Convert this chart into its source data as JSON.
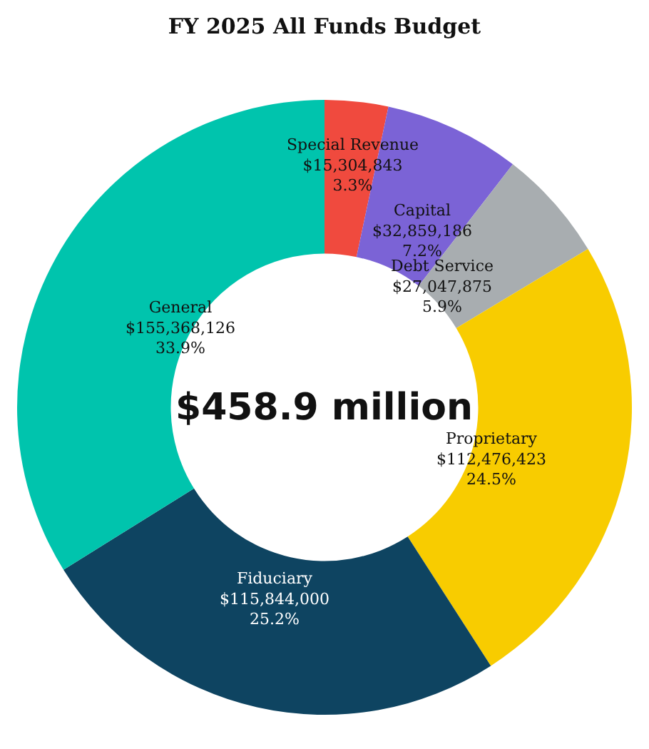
{
  "chart_data": {
    "type": "donut",
    "title": "FY 2025 All Funds Budget",
    "categories": [
      "Special Revenue",
      "Capital",
      "Debt Service",
      "Proprietary",
      "Fiduciary",
      "General"
    ],
    "values": [
      15304843,
      32859186,
      27047875,
      112476423,
      115844000,
      155368126
    ],
    "value_labels": [
      "$15,304,843\n3.3%",
      "$32,859,186\n7.2%",
      "$27,047,875\n5.9%",
      "$112,476,423\n24.5%",
      "$115,844,000\n25.2%",
      "$155,368,126\n33.9%"
    ],
    "colors": [
      "#f04a3e",
      "#7b63d6",
      "#a8adb0",
      "#f8cc00",
      "#0e4461",
      "#00c4ad"
    ],
    "annotations": [
      "$458.9 million"
    ],
    "legend": false
  }
}
